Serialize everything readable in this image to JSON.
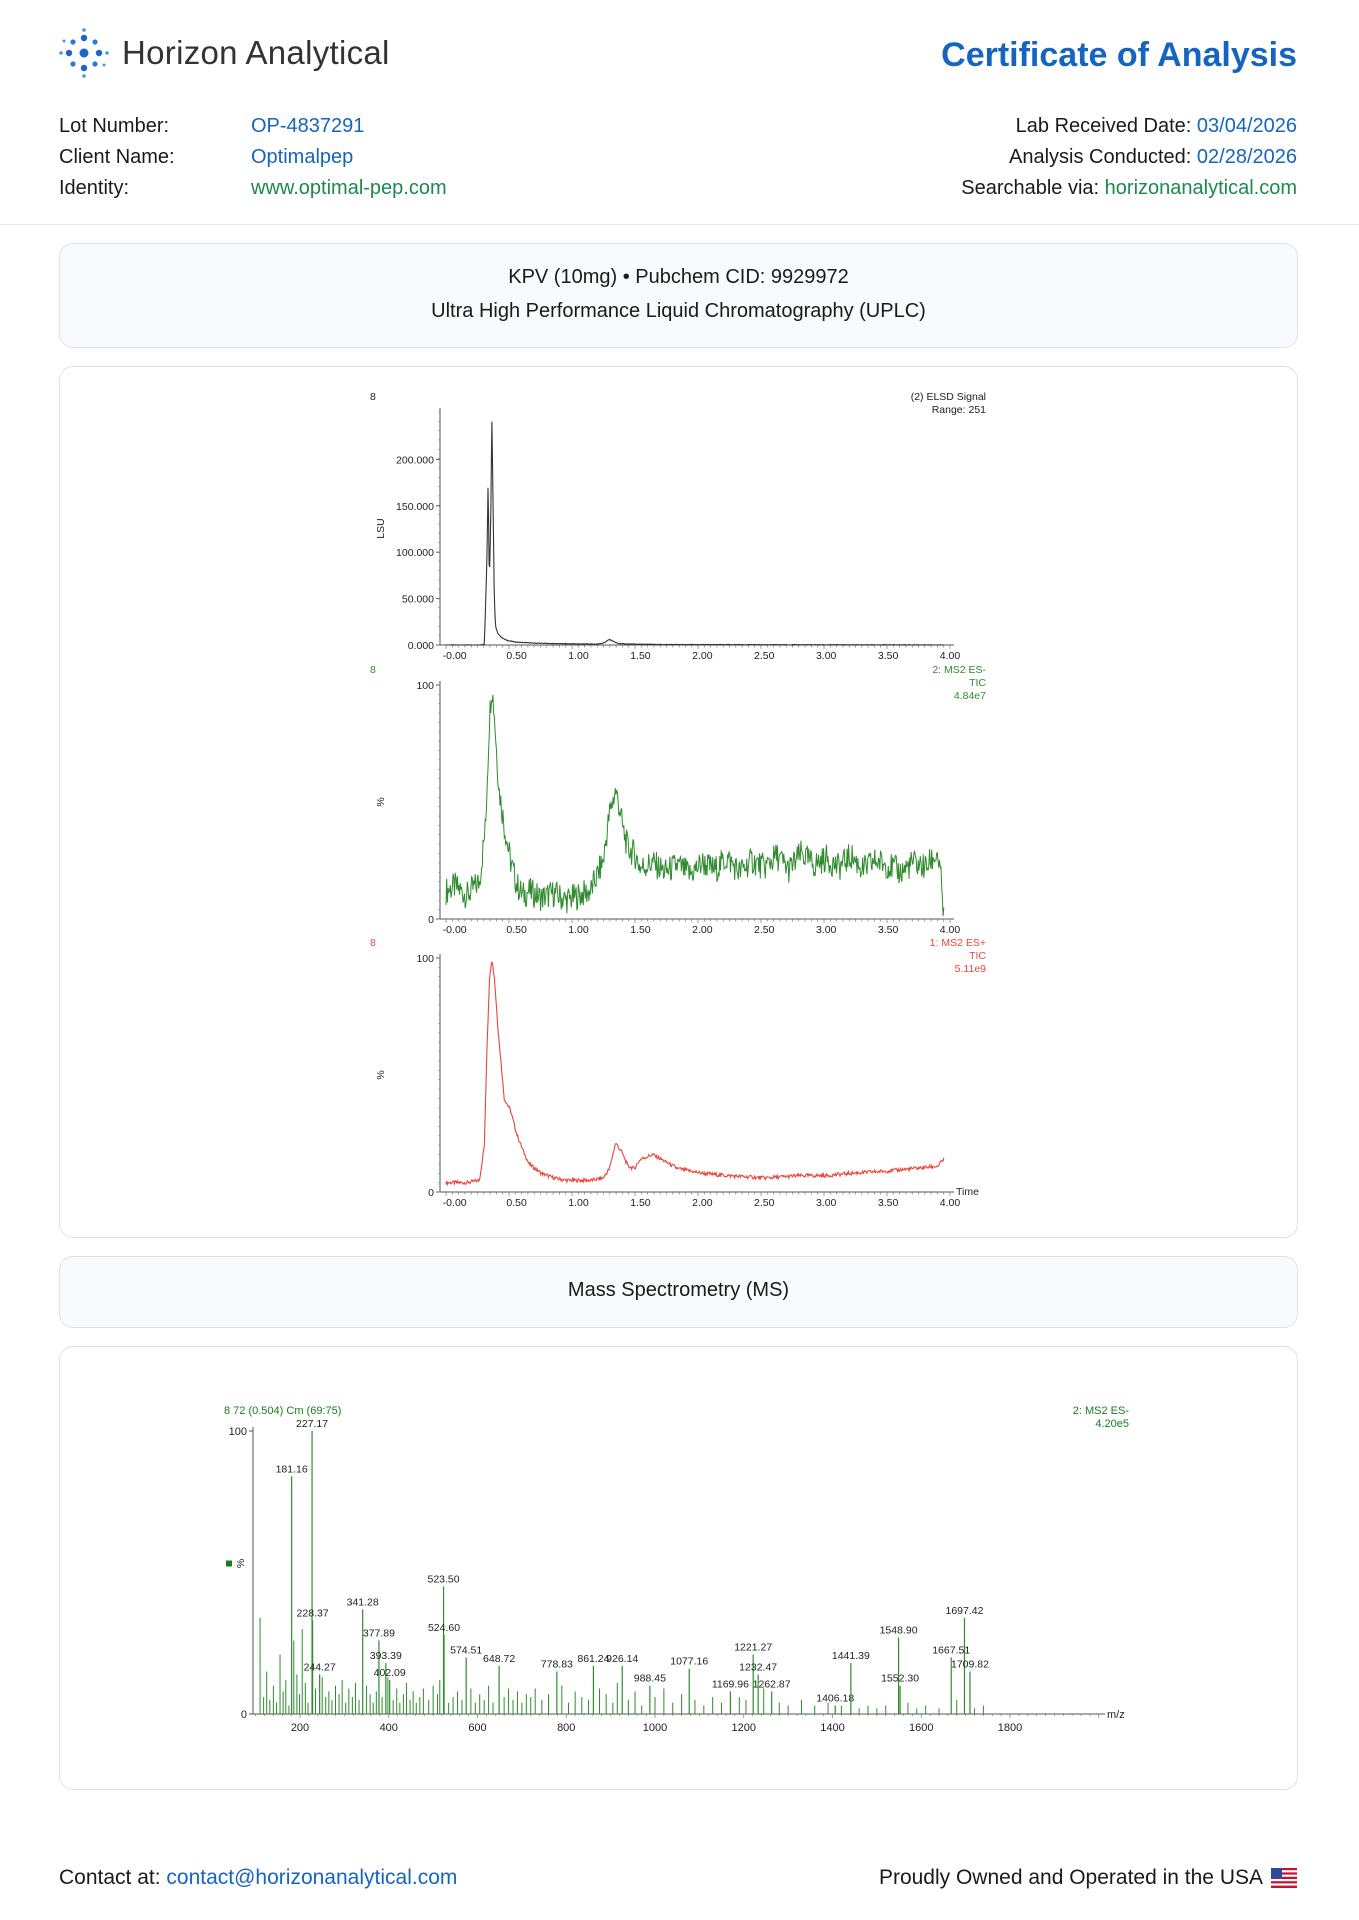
{
  "header": {
    "brand": "Horizon Analytical",
    "doc_title": "Certificate of Analysis",
    "left_fields": [
      {
        "label": "Lot Number:",
        "value": "OP-4837291",
        "color": "#1565c0"
      },
      {
        "label": "Client Name:",
        "value": "Optimalpep",
        "color": "#1565c0"
      },
      {
        "label": "Identity:",
        "value": "www.optimal-pep.com",
        "color": "#1b8a4c"
      }
    ],
    "right_fields": [
      {
        "label": "Lab Received Date:",
        "value": "03/04/2026",
        "color": "#1565c0"
      },
      {
        "label": "Analysis Conducted:",
        "value": "02/28/2026",
        "color": "#1565c0"
      },
      {
        "label": "Searchable via:",
        "value": "horizonanalytical.com",
        "color": "#1b8a4c"
      }
    ]
  },
  "uplc_section": {
    "title": "KPV (10mg) • Pubchem CID: 9929972",
    "subtitle": "Ultra High Performance Liquid Chromatography (UPLC)"
  },
  "ms_section": {
    "title": "Mass Spectrometry (MS)"
  },
  "footer": {
    "contact_label": "Contact at:",
    "contact_email": "contact@horizonanalytical.com",
    "usa_text": "Proudly Owned and Operated in the USA"
  },
  "chart_data": [
    {
      "type": "line",
      "corner_label": "8",
      "legend": [
        "(2) ELSD Signal",
        "Range: 251"
      ],
      "ylabel": "LSU",
      "yticks": [
        "0.000",
        "50.000",
        "100.000",
        "150.000",
        "200.000"
      ],
      "xticks": [
        "-0.00",
        "0.50",
        "1.00",
        "1.50",
        "2.00",
        "2.50",
        "3.00",
        "3.50",
        "4.00"
      ],
      "xlim": [
        -0.07,
        4.0
      ],
      "ylim": [
        0,
        251
      ],
      "color": "#333333",
      "series": [
        {
          "x": [
            -0.07,
            0.1,
            0.2,
            0.24,
            0.26,
            0.27,
            0.28,
            0.29,
            0.3,
            0.31,
            0.32,
            0.33,
            0.35,
            0.38,
            0.42,
            0.5,
            0.65,
            0.8,
            1.0,
            1.15,
            1.2,
            1.25,
            1.28,
            1.32,
            1.4,
            1.7,
            2.5,
            3.0,
            3.5,
            3.95
          ],
          "y": [
            0,
            0,
            0,
            1,
            90,
            174,
            70,
            120,
            248,
            150,
            50,
            20,
            12,
            8,
            5,
            3,
            2,
            1.5,
            1.2,
            1,
            2,
            6,
            4,
            1.5,
            1,
            0.5,
            0.3,
            0.2,
            0.2,
            0.1
          ]
        }
      ]
    },
    {
      "type": "line",
      "corner_label": "8",
      "legend": [
        "2: MS2 ES-",
        "TIC",
        "4.84e7"
      ],
      "ylabel": "%",
      "yticks": [
        "0",
        "100"
      ],
      "xticks": [
        "-0.00",
        "0.50",
        "1.00",
        "1.50",
        "2.00",
        "2.50",
        "3.00",
        "3.50",
        "4.00"
      ],
      "xlim": [
        -0.07,
        4.0
      ],
      "ylim": [
        0,
        100
      ],
      "color": "#2e8b2e",
      "series": [
        {
          "x": [
            -0.07,
            0.0,
            0.1,
            0.2,
            0.25,
            0.28,
            0.3,
            0.32,
            0.34,
            0.36,
            0.4,
            0.45,
            0.5,
            0.55,
            0.6,
            0.7,
            0.8,
            0.9,
            1.0,
            1.1,
            1.2,
            1.25,
            1.3,
            1.33,
            1.36,
            1.4,
            1.45,
            1.5,
            1.6,
            1.7,
            1.8,
            1.9,
            2.0,
            2.1,
            2.2,
            2.3,
            2.4,
            2.5,
            2.6,
            2.7,
            2.8,
            2.9,
            3.0,
            3.1,
            3.2,
            3.3,
            3.4,
            3.5,
            3.6,
            3.7,
            3.8,
            3.85,
            3.9,
            3.93,
            3.95
          ],
          "y": [
            12,
            14,
            10,
            16,
            40,
            85,
            100,
            88,
            70,
            55,
            40,
            25,
            15,
            10,
            12,
            9,
            11,
            8,
            10,
            12,
            25,
            45,
            55,
            48,
            38,
            30,
            28,
            22,
            24,
            20,
            23,
            19,
            24,
            21,
            26,
            20,
            25,
            22,
            27,
            21,
            28,
            23,
            26,
            22,
            27,
            21,
            25,
            23,
            20,
            24,
            22,
            25,
            28,
            15,
            0
          ]
        }
      ]
    },
    {
      "type": "line",
      "corner_label": "8",
      "legend": [
        "1: MS2 ES+",
        "TIC",
        "5.11e9"
      ],
      "ylabel": "%",
      "xlabel": "Time",
      "yticks": [
        "0",
        "100"
      ],
      "xticks": [
        "-0.00",
        "0.50",
        "1.00",
        "1.50",
        "2.00",
        "2.50",
        "3.00",
        "3.50",
        "4.00"
      ],
      "xlim": [
        -0.07,
        4.0
      ],
      "ylim": [
        0,
        100
      ],
      "color": "#e8453c",
      "series": [
        {
          "x": [
            -0.07,
            0.0,
            0.1,
            0.2,
            0.24,
            0.26,
            0.28,
            0.3,
            0.32,
            0.35,
            0.4,
            0.45,
            0.5,
            0.55,
            0.6,
            0.7,
            0.8,
            0.9,
            1.0,
            1.1,
            1.2,
            1.25,
            1.3,
            1.35,
            1.4,
            1.45,
            1.5,
            1.55,
            1.6,
            1.7,
            1.8,
            2.0,
            2.2,
            2.5,
            2.8,
            3.0,
            3.2,
            3.5,
            3.7,
            3.9,
            3.95
          ],
          "y": [
            4,
            4,
            4,
            5,
            20,
            60,
            90,
            100,
            92,
            70,
            40,
            35,
            25,
            18,
            12,
            8,
            6,
            5,
            5,
            5,
            6,
            10,
            21,
            17,
            11,
            10,
            14,
            15,
            16,
            13,
            10,
            8,
            7,
            6,
            7,
            7,
            8,
            9,
            10,
            11,
            14
          ]
        }
      ]
    },
    {
      "type": "bar",
      "corner_label": "8 72 (0.504) Cm (69:75)",
      "legend": [
        "2: MS2 ES-",
        "4.20e5"
      ],
      "ylabel": "%",
      "xlabel": "m/z",
      "yticks": [
        "0",
        "100"
      ],
      "xticks": [
        "200",
        "400",
        "600",
        "800",
        "1000",
        "1200",
        "1400",
        "1600",
        "1800"
      ],
      "xlim": [
        100,
        2000
      ],
      "ylim": [
        0,
        100
      ],
      "color": "#2e8b2e",
      "labeled_peaks": [
        {
          "mz": 181.16,
          "label": "181.16",
          "y": 84
        },
        {
          "mz": 227.17,
          "label": "227.17",
          "y": 100
        },
        {
          "mz": 228.37,
          "label": "228.37",
          "y": 33
        },
        {
          "mz": 244.27,
          "label": "244.27",
          "y": 14
        },
        {
          "mz": 341.28,
          "label": "341.28",
          "y": 37
        },
        {
          "mz": 377.89,
          "label": "377.89",
          "y": 26
        },
        {
          "mz": 393.39,
          "label": "393.39",
          "y": 18
        },
        {
          "mz": 402.09,
          "label": "402.09",
          "y": 12
        },
        {
          "mz": 523.5,
          "label": "523.50",
          "y": 45
        },
        {
          "mz": 524.6,
          "label": "524.60",
          "y": 28
        },
        {
          "mz": 574.51,
          "label": "574.51",
          "y": 20
        },
        {
          "mz": 648.72,
          "label": "648.72",
          "y": 17
        },
        {
          "mz": 778.83,
          "label": "778.83",
          "y": 15
        },
        {
          "mz": 861.24,
          "label": "861.24",
          "y": 17
        },
        {
          "mz": 926.14,
          "label": "926.14",
          "y": 17
        },
        {
          "mz": 988.45,
          "label": "988.45",
          "y": 10
        },
        {
          "mz": 1077.16,
          "label": "1077.16",
          "y": 16
        },
        {
          "mz": 1169.96,
          "label": "1169.96",
          "y": 8
        },
        {
          "mz": 1221.27,
          "label": "1221.27",
          "y": 21
        },
        {
          "mz": 1232.47,
          "label": "1232.47",
          "y": 14
        },
        {
          "mz": 1262.87,
          "label": "1262.87",
          "y": 8
        },
        {
          "mz": 1406.18,
          "label": "1406.18",
          "y": 3
        },
        {
          "mz": 1441.39,
          "label": "1441.39",
          "y": 18
        },
        {
          "mz": 1548.9,
          "label": "1548.90",
          "y": 27
        },
        {
          "mz": 1552.3,
          "label": "1552.30",
          "y": 10
        },
        {
          "mz": 1667.51,
          "label": "1667.51",
          "y": 20
        },
        {
          "mz": 1697.42,
          "label": "1697.42",
          "y": 34
        },
        {
          "mz": 1709.82,
          "label": "1709.82",
          "y": 15
        }
      ],
      "minor_peaks": {
        "mz": [
          110,
          118,
          125,
          132,
          140,
          147,
          155,
          162,
          168,
          175,
          186,
          193,
          199,
          205,
          212,
          218,
          235,
          250,
          258,
          265,
          272,
          280,
          288,
          295,
          303,
          310,
          318,
          325,
          333,
          350,
          358,
          365,
          372,
          385,
          398,
          410,
          418,
          425,
          433,
          440,
          448,
          455,
          462,
          470,
          478,
          490,
          500,
          510,
          515,
          535,
          545,
          555,
          565,
          585,
          595,
          605,
          615,
          625,
          635,
          660,
          670,
          680,
          690,
          700,
          710,
          720,
          730,
          745,
          760,
          790,
          805,
          820,
          835,
          850,
          875,
          890,
          905,
          915,
          940,
          955,
          970,
          1000,
          1020,
          1040,
          1060,
          1090,
          1110,
          1130,
          1150,
          1190,
          1205,
          1245,
          1280,
          1300,
          1330,
          1360,
          1390,
          1420,
          1460,
          1480,
          1500,
          1520,
          1570,
          1590,
          1610,
          1640,
          1680,
          1720,
          1740
        ],
        "y": [
          34,
          6,
          15,
          5,
          10,
          4,
          21,
          8,
          12,
          3,
          26,
          14,
          7,
          30,
          11,
          4,
          9,
          13,
          6,
          8,
          5,
          10,
          7,
          12,
          4,
          9,
          6,
          11,
          5,
          10,
          7,
          4,
          8,
          6,
          13,
          5,
          9,
          4,
          7,
          11,
          5,
          8,
          4,
          6,
          9,
          5,
          10,
          7,
          12,
          4,
          6,
          8,
          5,
          9,
          4,
          7,
          5,
          10,
          4,
          6,
          9,
          5,
          8,
          4,
          7,
          6,
          9,
          5,
          7,
          10,
          4,
          8,
          6,
          5,
          9,
          7,
          4,
          11,
          5,
          8,
          3,
          6,
          9,
          4,
          7,
          5,
          3,
          6,
          4,
          6,
          5,
          9,
          4,
          3,
          5,
          3,
          4,
          3,
          2,
          3,
          2,
          3,
          4,
          2,
          3,
          2,
          5,
          2,
          3
        ]
      }
    }
  ]
}
